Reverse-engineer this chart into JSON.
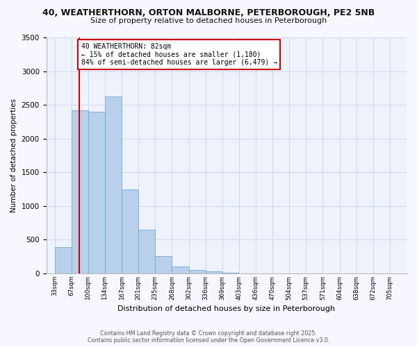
{
  "title": "40, WEATHERTHORN, ORTON MALBORNE, PETERBOROUGH, PE2 5NB",
  "subtitle": "Size of property relative to detached houses in Peterborough",
  "xlabel": "Distribution of detached houses by size in Peterborough",
  "ylabel": "Number of detached properties",
  "footer_line1": "Contains HM Land Registry data © Crown copyright and database right 2025.",
  "footer_line2": "Contains public sector information licensed under the Open Government Licence v3.0.",
  "bins": [
    "33sqm",
    "67sqm",
    "100sqm",
    "134sqm",
    "167sqm",
    "201sqm",
    "235sqm",
    "268sqm",
    "302sqm",
    "336sqm",
    "369sqm",
    "403sqm",
    "436sqm",
    "470sqm",
    "504sqm",
    "537sqm",
    "571sqm",
    "604sqm",
    "638sqm",
    "672sqm",
    "705sqm"
  ],
  "values": [
    390,
    2420,
    2400,
    2620,
    1250,
    650,
    260,
    105,
    55,
    30,
    15,
    5,
    3,
    2,
    1,
    0,
    0,
    0,
    0,
    0,
    0
  ],
  "bar_color": "#b8d0ea",
  "bar_edge_color": "#7aaace",
  "grid_color": "#ccd8ee",
  "bg_color": "#eef2fb",
  "red_line_color": "#cc0000",
  "annotation_title": "40 WEATHERTHORN: 82sqm",
  "annotation_line1": "← 15% of detached houses are smaller (1,180)",
  "annotation_line2": "84% of semi-detached houses are larger (6,479) →",
  "annotation_box_color": "#ffffff",
  "annotation_border_color": "#cc0000",
  "ylim": [
    0,
    3500
  ],
  "yticks": [
    0,
    500,
    1000,
    1500,
    2000,
    2500,
    3000,
    3500
  ],
  "fig_bg": "#f7f7ff"
}
